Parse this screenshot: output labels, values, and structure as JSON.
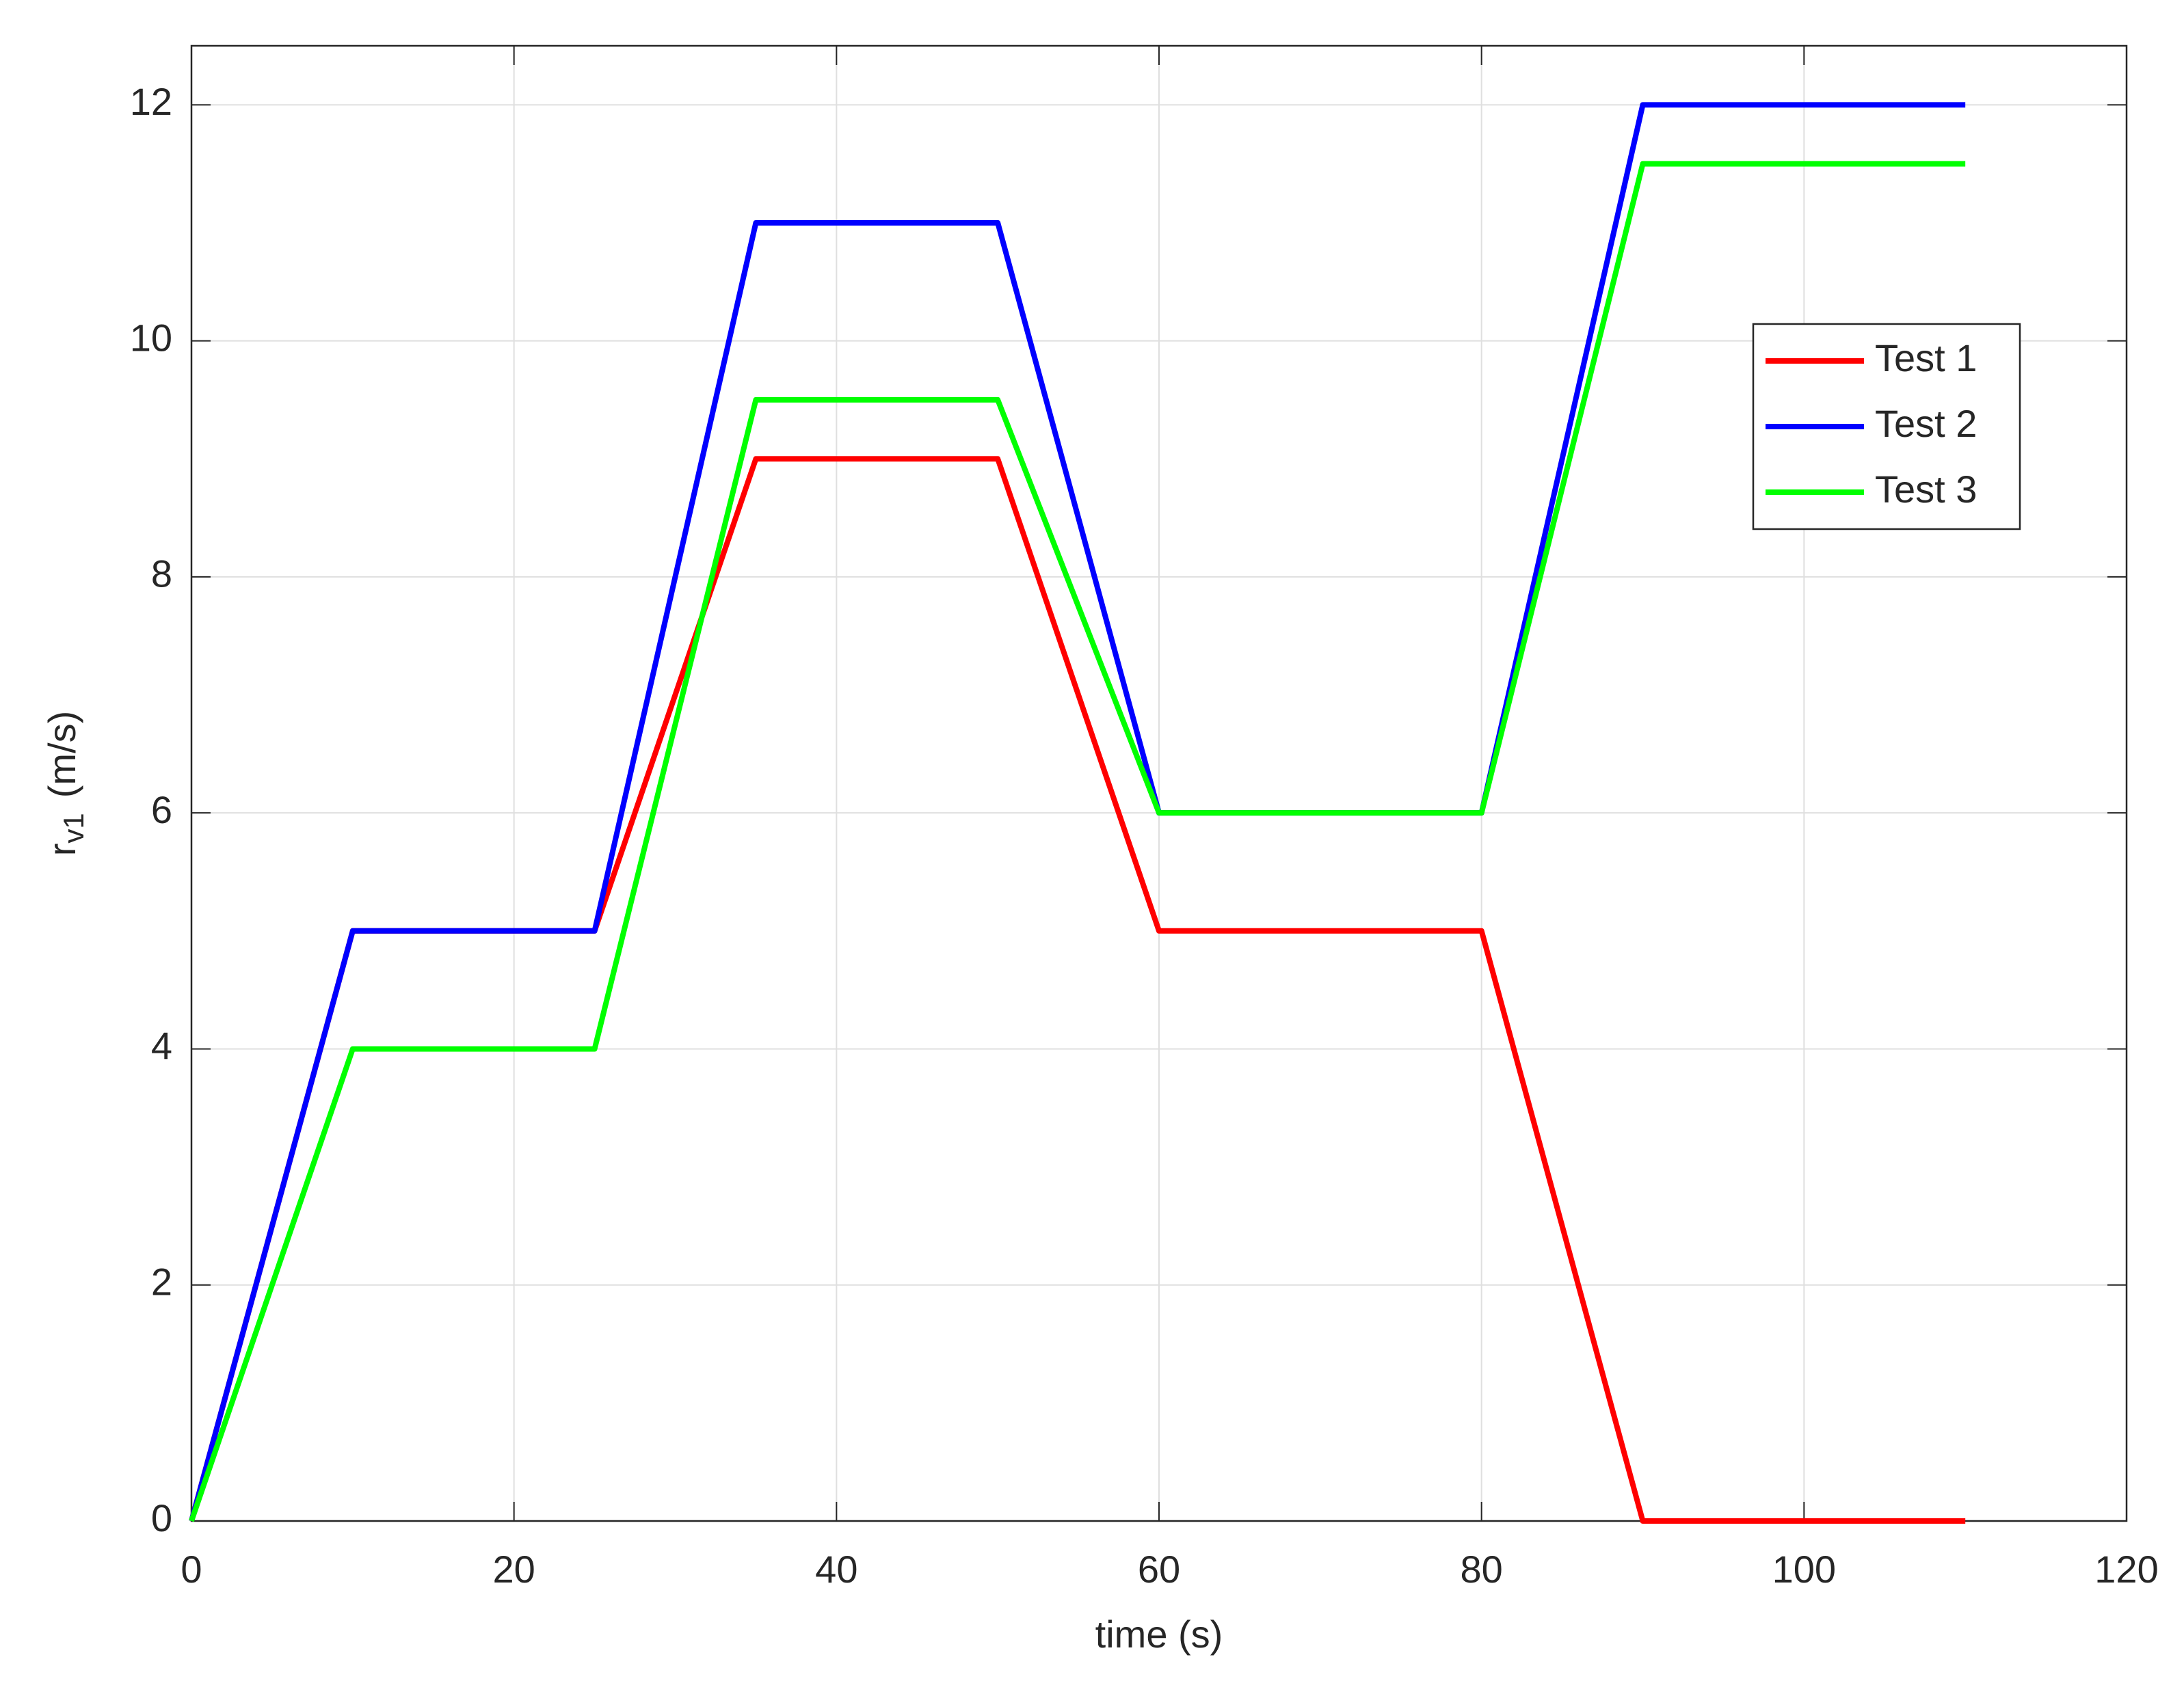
{
  "chart_data": {
    "type": "line",
    "xlabel": "time (s)",
    "ylabel": "r",
    "ylabel_subscript": "v1",
    "ylabel_unit": "(m/s)",
    "x": [
      0,
      10,
      25,
      35,
      50,
      60,
      80,
      90,
      110
    ],
    "series": [
      {
        "name": "Test 1",
        "color": "#ff0000",
        "values": [
          0,
          5,
          5,
          9,
          9,
          5,
          5,
          0,
          0
        ]
      },
      {
        "name": "Test 2",
        "color": "#0000ff",
        "values": [
          0,
          5,
          5,
          11,
          11,
          6,
          6,
          12,
          12
        ]
      },
      {
        "name": "Test 3",
        "color": "#00ff00",
        "values": [
          0,
          4,
          4,
          9.5,
          9.5,
          6,
          6,
          11.5,
          11.5
        ]
      }
    ],
    "xlim": [
      0,
      120
    ],
    "xticks": [
      0,
      20,
      40,
      60,
      80,
      100,
      120
    ],
    "ylim": [
      0,
      12.5
    ],
    "yticks": [
      0,
      2,
      4,
      6,
      8,
      10,
      12
    ],
    "grid": true,
    "legend": "upper right"
  }
}
